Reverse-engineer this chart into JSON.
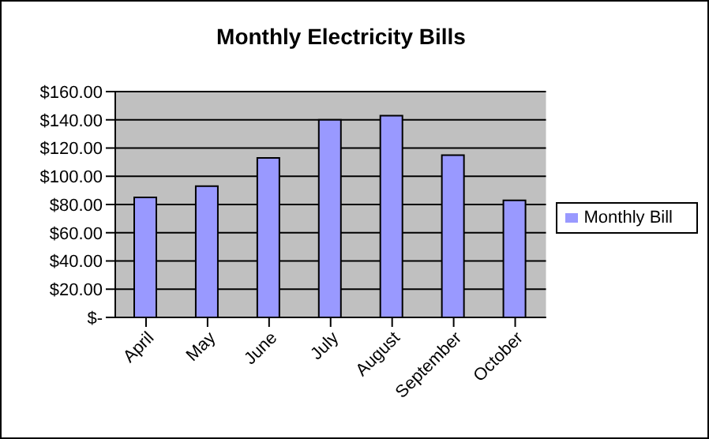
{
  "chart_data": {
    "type": "bar",
    "title": "Monthly Electricity Bills",
    "categories": [
      "April",
      "May",
      "June",
      "July",
      "August",
      "September",
      "October"
    ],
    "series": [
      {
        "name": "Monthly Bill",
        "color": "#9999ff",
        "values": [
          85,
          93,
          113,
          140,
          143,
          115,
          83
        ]
      }
    ],
    "ylim": [
      0,
      160
    ],
    "yticks": [
      {
        "value": 0,
        "label": "$-"
      },
      {
        "value": 20,
        "label": "$20.00"
      },
      {
        "value": 40,
        "label": "$40.00"
      },
      {
        "value": 60,
        "label": "$60.00"
      },
      {
        "value": 80,
        "label": "$80.00"
      },
      {
        "value": 100,
        "label": "$100.00"
      },
      {
        "value": 120,
        "label": "$120.00"
      },
      {
        "value": 140,
        "label": "$140.00"
      },
      {
        "value": 160,
        "label": "$160.00"
      }
    ],
    "grid": "y",
    "legend": "right"
  }
}
